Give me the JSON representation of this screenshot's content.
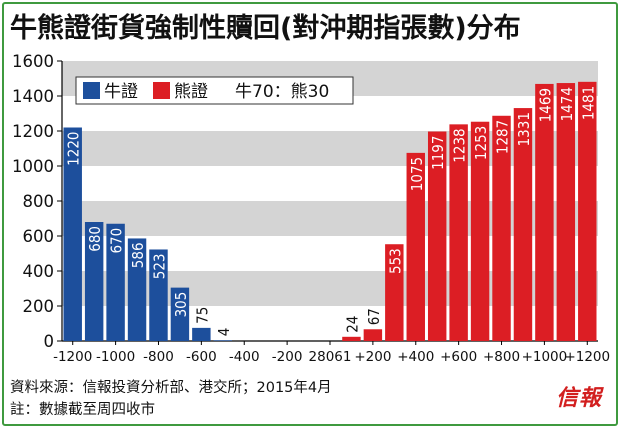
{
  "chart_data": {
    "type": "bar",
    "title": "牛熊證街貨強制性贖回(對沖期指張數)分布",
    "ylim": [
      0,
      1600
    ],
    "yticks": [
      0,
      200,
      400,
      600,
      800,
      1000,
      1200,
      1400,
      1600
    ],
    "xticks": [
      "-1200",
      "-1000",
      "-800",
      "-600",
      "-400",
      "-200",
      "28061",
      "+200",
      "+400",
      "+600",
      "+800",
      "+1000",
      "+1200"
    ],
    "legend": {
      "placement": "top-left",
      "bull": "牛證",
      "bear": "熊證",
      "ratio": "牛70：熊30"
    },
    "series": [
      {
        "name": "牛證",
        "color": "#1d4f9c",
        "points": [
          {
            "x": -1200,
            "value": 1220
          },
          {
            "x": -1100,
            "value": 680
          },
          {
            "x": -1000,
            "value": 670
          },
          {
            "x": -900,
            "value": 586
          },
          {
            "x": -800,
            "value": 523
          },
          {
            "x": -700,
            "value": 305
          },
          {
            "x": -600,
            "value": 75
          },
          {
            "x": -500,
            "value": 4
          }
        ]
      },
      {
        "name": "熊證",
        "color": "#dc1e24",
        "points": [
          {
            "x": 100,
            "value": 24
          },
          {
            "x": 200,
            "value": 67
          },
          {
            "x": 300,
            "value": 553
          },
          {
            "x": 400,
            "value": 1075
          },
          {
            "x": 500,
            "value": 1197
          },
          {
            "x": 600,
            "value": 1238
          },
          {
            "x": 700,
            "value": 1253
          },
          {
            "x": 800,
            "value": 1287
          },
          {
            "x": 900,
            "value": 1331
          },
          {
            "x": 1000,
            "value": 1469
          },
          {
            "x": 1100,
            "value": 1474
          },
          {
            "x": 1200,
            "value": 1481
          }
        ]
      }
    ]
  },
  "footer": {
    "source": "資料來源：信報投資分析部、港交所；2015年4月",
    "note": "註：數據截至周四收市"
  },
  "logo_text": "信報",
  "colors": {
    "frame": "#3f9a3f",
    "band": "#d4d4d4"
  }
}
